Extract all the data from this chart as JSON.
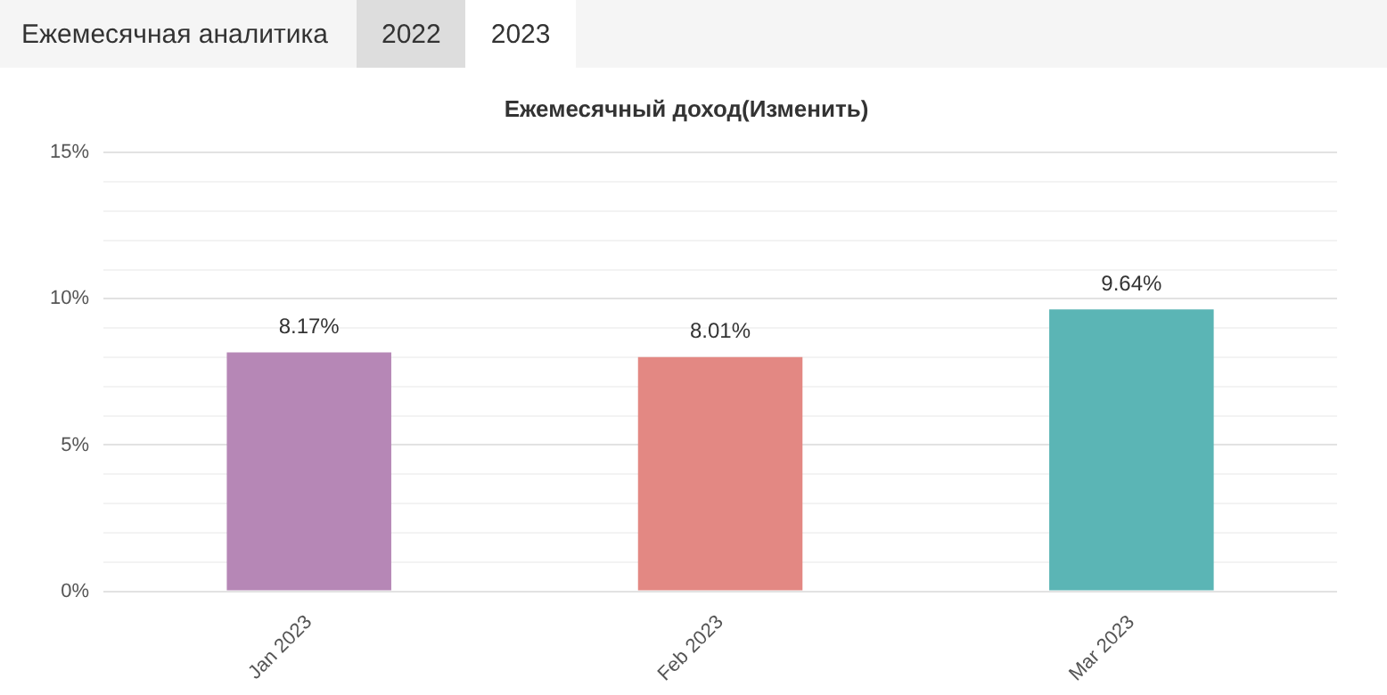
{
  "chart_data": {
    "type": "bar",
    "title": "Ежемесячный доход(Изменить)",
    "annotations": [
      "Ежемесячная аналитика",
      "2022",
      "2023"
    ],
    "categories": [
      "Jan 2023",
      "Feb 2023",
      "Mar 2023"
    ],
    "values": [
      8.17,
      8.01,
      9.64
    ],
    "colors": [
      "#b687b6",
      "#e38883",
      "#5bb5b5"
    ],
    "value_labels": [
      "8.17%",
      "8.01%",
      "9.64%"
    ],
    "ylim": [
      0,
      15
    ],
    "yticks": [
      {
        "value": 0,
        "label": "0%"
      },
      {
        "value": 1,
        "label": null
      },
      {
        "value": 2,
        "label": null
      },
      {
        "value": 3,
        "label": null
      },
      {
        "value": 4,
        "label": null
      },
      {
        "value": 5,
        "label": "5%"
      },
      {
        "value": 6,
        "label": null
      },
      {
        "value": 7,
        "label": null
      },
      {
        "value": 8,
        "label": null
      },
      {
        "value": 9,
        "label": null
      },
      {
        "value": 10,
        "label": "10%"
      },
      {
        "value": 11,
        "label": null
      },
      {
        "value": 12,
        "label": null
      },
      {
        "value": 13,
        "label": null
      },
      {
        "value": 14,
        "label": null
      },
      {
        "value": 15,
        "label": "15%"
      }
    ],
    "grid": "y",
    "legend": false
  }
}
